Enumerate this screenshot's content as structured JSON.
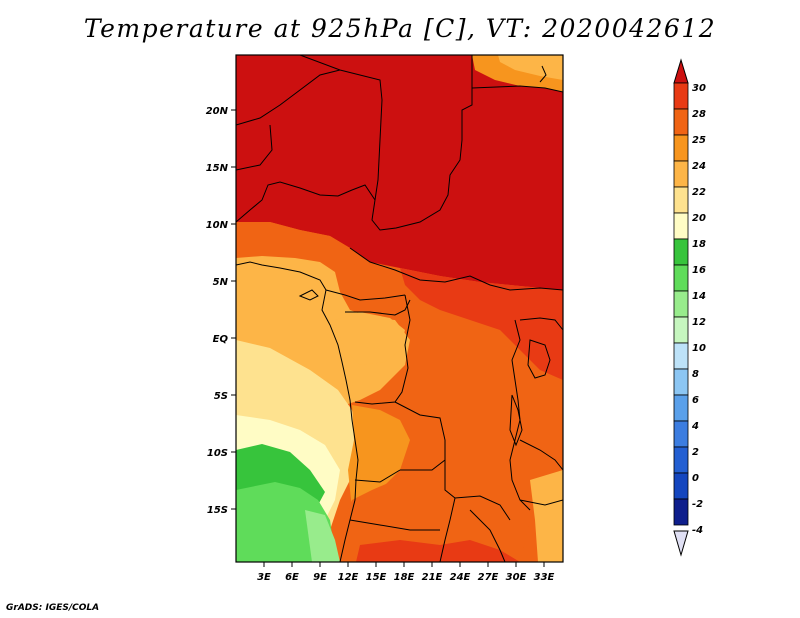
{
  "title": "Temperature at 925hPa [C], VT: 2020042612",
  "credit": "GrADS: IGES/COLA",
  "map": {
    "region": "Central Africa",
    "lon_range": [
      0,
      35
    ],
    "lat_range": [
      -19.5,
      24.5
    ],
    "x_ticks": [
      {
        "value": 3,
        "label": "3E"
      },
      {
        "value": 6,
        "label": "6E"
      },
      {
        "value": 9,
        "label": "9E"
      },
      {
        "value": 12,
        "label": "12E"
      },
      {
        "value": 15,
        "label": "15E"
      },
      {
        "value": 18,
        "label": "18E"
      },
      {
        "value": 21,
        "label": "21E"
      },
      {
        "value": 24,
        "label": "24E"
      },
      {
        "value": 27,
        "label": "27E"
      },
      {
        "value": 30,
        "label": "30E"
      },
      {
        "value": 33,
        "label": "33E"
      }
    ],
    "y_ticks": [
      {
        "value": 20,
        "label": "20N"
      },
      {
        "value": 15,
        "label": "15N"
      },
      {
        "value": 10,
        "label": "10N"
      },
      {
        "value": 5,
        "label": "5N"
      },
      {
        "value": 0,
        "label": "EQ"
      },
      {
        "value": -5,
        "label": "5S"
      },
      {
        "value": -10,
        "label": "10S"
      },
      {
        "value": -15,
        "label": "15S"
      }
    ]
  },
  "colorbar": {
    "labels": [
      "30",
      "28",
      "25",
      "24",
      "22",
      "20",
      "18",
      "16",
      "14",
      "12",
      "10",
      "8",
      "6",
      "4",
      "2",
      "0",
      "-2",
      "-4"
    ],
    "colors": [
      "#cc1010",
      "#e83a14",
      "#f06414",
      "#f7951e",
      "#fdb547",
      "#fee28f",
      "#fffcc5",
      "#37c43c",
      "#5fdc5a",
      "#98ec8c",
      "#c6f6bf",
      "#bde2f8",
      "#8cc6f3",
      "#5aa0ea",
      "#3c7de0",
      "#235fd2",
      "#1446bf",
      "#0e1e8c",
      "#e0e0f4"
    ]
  }
}
